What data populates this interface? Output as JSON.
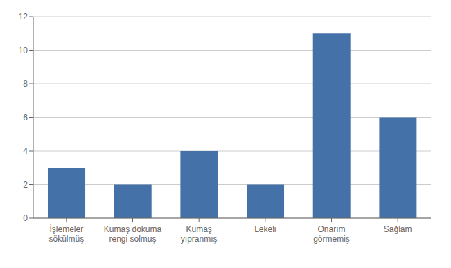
{
  "chart_data": {
    "type": "bar",
    "categories": [
      "İşlemeler\nsökülmüş",
      "Kumaş dokuma\nrengi solmuş",
      "Kumaş\nyıpranmış",
      "Lekeli",
      "Onarım\ngörmemiş",
      "Sağlam"
    ],
    "values": [
      3,
      2,
      4,
      2,
      11,
      6
    ],
    "color": "#4472a8",
    "ylim": [
      0,
      12
    ],
    "yticks": [
      0,
      2,
      4,
      6,
      8,
      10,
      12
    ],
    "grid": true
  }
}
